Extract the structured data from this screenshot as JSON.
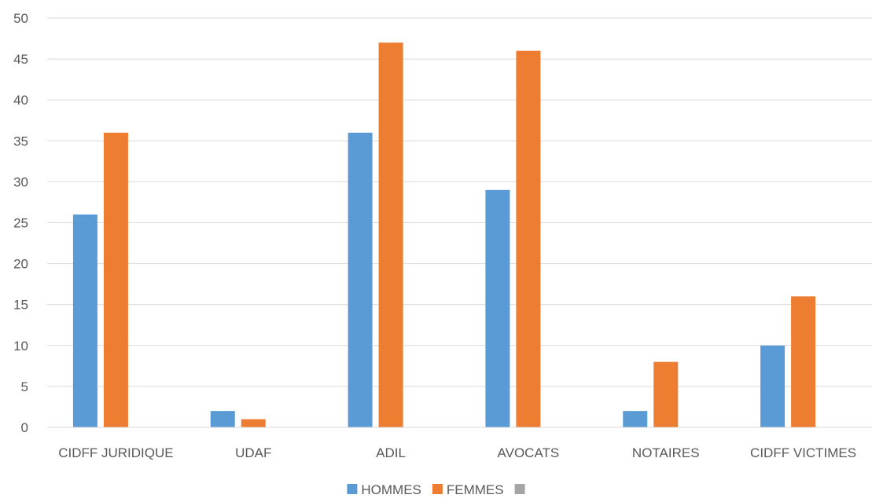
{
  "chart_data": {
    "type": "bar",
    "categories": [
      "CIDFF JURIDIQUE",
      "UDAF",
      "ADIL",
      "AVOCATS",
      "NOTAIRES",
      "CIDFF VICTIMES"
    ],
    "series": [
      {
        "name": "HOMMES",
        "color": "#5b9bd5",
        "values": [
          26,
          2,
          36,
          29,
          2,
          10
        ]
      },
      {
        "name": "FEMMES",
        "color": "#ed7d31",
        "values": [
          36,
          1,
          47,
          46,
          8,
          16
        ]
      },
      {
        "name": "",
        "color": "#a5a5a5",
        "values": [
          null,
          null,
          null,
          null,
          null,
          null
        ]
      }
    ],
    "ylim": [
      0,
      50
    ],
    "yticks": [
      0,
      5,
      10,
      15,
      20,
      25,
      30,
      35,
      40,
      45,
      50
    ],
    "xlabel": "",
    "ylabel": "",
    "grid": true,
    "legend_position": "bottom"
  }
}
